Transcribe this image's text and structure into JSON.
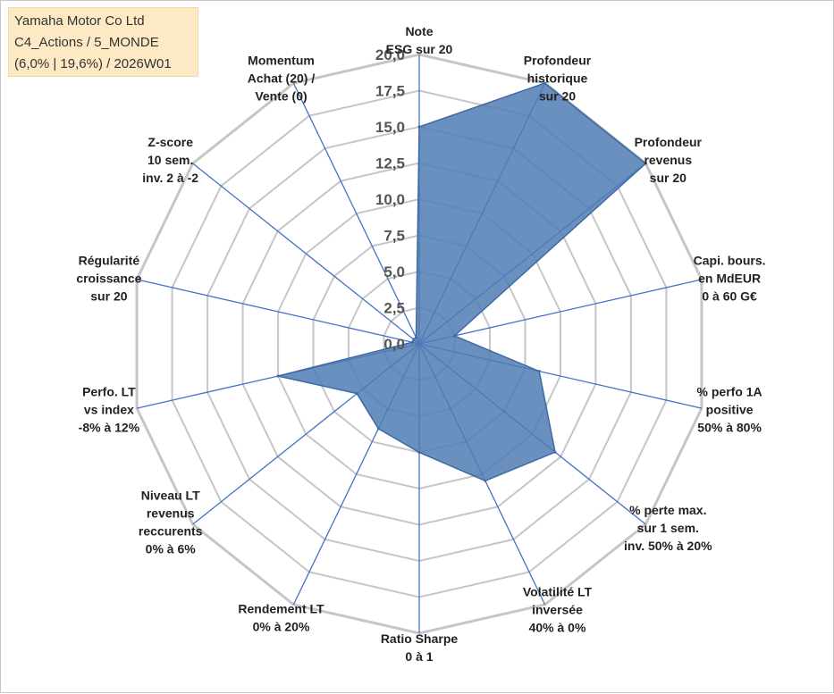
{
  "info_box": {
    "line1": "Yamaha Motor Co Ltd",
    "line2": "C4_Actions / 5_MONDE",
    "line3": "(6,0% | 19,6%) / 2026W01"
  },
  "colors": {
    "series_fill": "#4f7cb3",
    "series_stroke": "#3e6aa3",
    "grid": "#c6c6c6",
    "spokes": "#4472c4",
    "info_bg": "#fde9c4"
  },
  "chart_data": {
    "type": "radar",
    "title": "",
    "rmax": 20,
    "tick_labels": [
      "0,0",
      "2,5",
      "5,0",
      "7,5",
      "10,0",
      "12,5",
      "15,0",
      "17,5",
      "20,0"
    ],
    "categories": [
      [
        "Note",
        "ESG sur 20"
      ],
      [
        "Profondeur",
        "historique",
        "sur 20"
      ],
      [
        "Profondeur",
        "revenus",
        "sur 20"
      ],
      [
        "Capi. bours.",
        "en MdEUR",
        "0 à 60 G€"
      ],
      [
        "% perfo 1A",
        "positive",
        "50% à 80%"
      ],
      [
        "% perte max.",
        "sur 1 sem.",
        "inv. 50% à 20%"
      ],
      [
        "Volatilité LT",
        "inversée",
        "40% à 0%"
      ],
      [
        "Ratio Sharpe",
        "0 à 1"
      ],
      [
        "Rendement LT",
        "0% à 20%"
      ],
      [
        "Niveau LT",
        "revenus",
        "reccurents",
        "0% à 6%"
      ],
      [
        "Perfo. LT",
        "vs index",
        "-8% à 12%"
      ],
      [
        "Régularité",
        "croissance",
        "sur 20"
      ],
      [
        "Z-score",
        "10 sem.",
        "inv. 2 à -2"
      ],
      [
        "Momentum",
        "Achat (20) /",
        "Vente (0)"
      ]
    ],
    "series": [
      {
        "name": "Yamaha Motor Co Ltd",
        "values": [
          15,
          20,
          20,
          2.5,
          8.5,
          12,
          10.5,
          7.5,
          6.5,
          5.5,
          10,
          0.5,
          0.5,
          0.5
        ]
      }
    ]
  }
}
